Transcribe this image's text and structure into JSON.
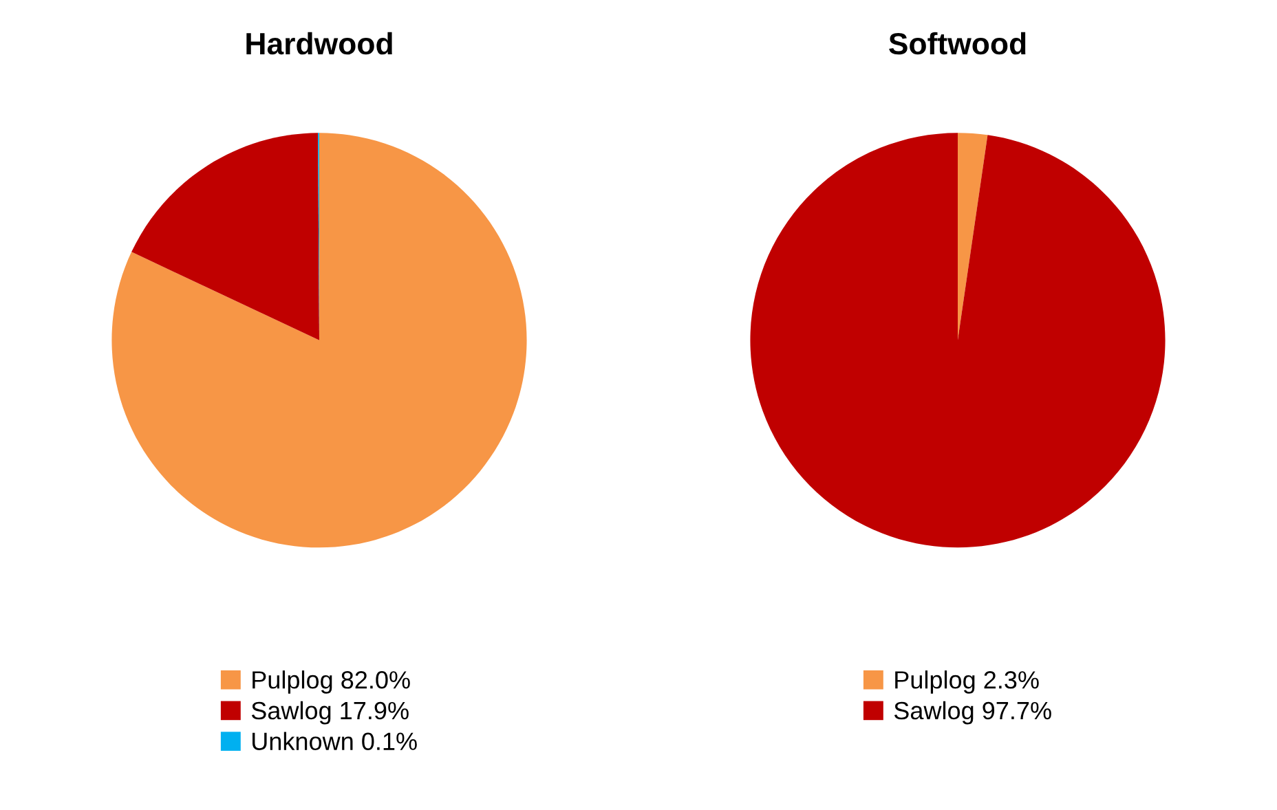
{
  "chart_data": [
    {
      "type": "pie",
      "title": "Hardwood",
      "categories": [
        "Pulplog",
        "Sawlog",
        "Unknown"
      ],
      "values": [
        82.0,
        17.9,
        0.1
      ],
      "value_labels": [
        "82.0%",
        "17.9%",
        "0.1%"
      ],
      "colors": [
        "#f79646",
        "#c00000",
        "#00b0f0"
      ],
      "legend": "bottom"
    },
    {
      "type": "pie",
      "title": "Softwood",
      "categories": [
        "Pulplog",
        "Sawlog"
      ],
      "values": [
        2.3,
        97.7
      ],
      "value_labels": [
        "2.3%",
        "97.7%"
      ],
      "colors": [
        "#f79646",
        "#c00000"
      ],
      "legend": "bottom"
    }
  ]
}
